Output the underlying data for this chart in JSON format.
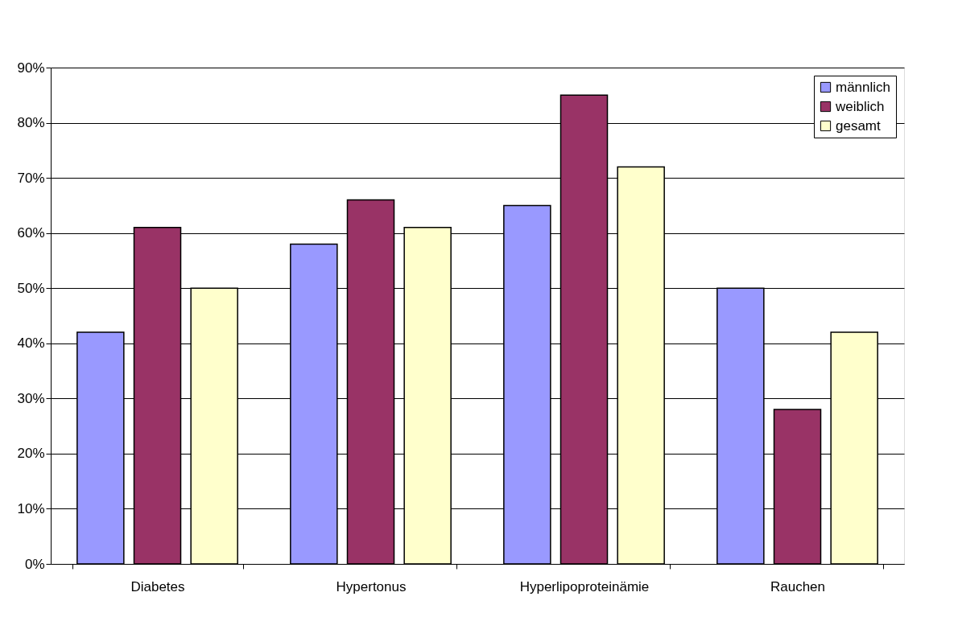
{
  "chart_data": {
    "type": "bar",
    "categories": [
      "Diabetes",
      "Hypertonus",
      "Hyperlipoproteinämie",
      "Rauchen"
    ],
    "series": [
      {
        "name": "männlich",
        "color": "#9999ff",
        "values": [
          42,
          58,
          65,
          50
        ]
      },
      {
        "name": "weiblich",
        "color": "#993366",
        "values": [
          61,
          66,
          85,
          28
        ]
      },
      {
        "name": "gesamt",
        "color": "#ffffcc",
        "values": [
          50,
          61,
          72,
          42
        ]
      }
    ],
    "ylim": [
      0,
      90
    ],
    "yticks": [
      {
        "value": 0,
        "label": "0%"
      },
      {
        "value": 10,
        "label": "10%"
      },
      {
        "value": 20,
        "label": "20%"
      },
      {
        "value": 30,
        "label": "30%"
      },
      {
        "value": 40,
        "label": "40%"
      },
      {
        "value": 50,
        "label": "50%"
      },
      {
        "value": 60,
        "label": "60%"
      },
      {
        "value": 70,
        "label": "70%"
      },
      {
        "value": 80,
        "label": "80%"
      },
      {
        "value": 90,
        "label": "90%"
      }
    ],
    "grid": "y",
    "legend": "top right"
  }
}
